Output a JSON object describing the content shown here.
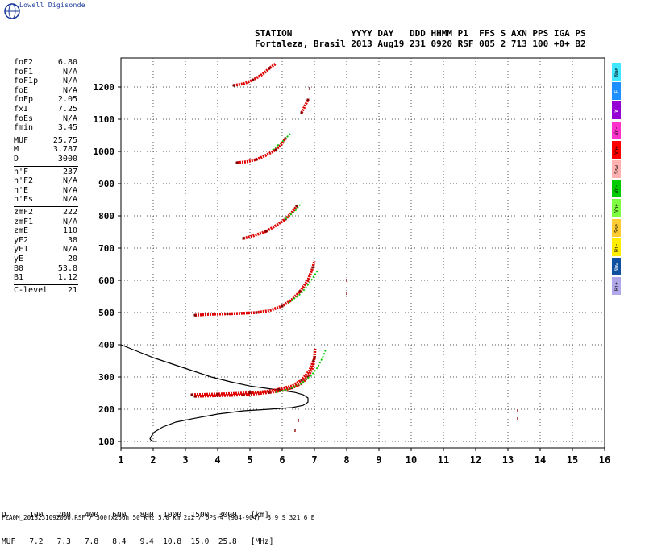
{
  "brand": "Lowell Digisonde",
  "station": {
    "header": "STATION           YYYY DAY   DDD HHMM P1  FFS S AXN PPS IGA PS",
    "values": "Fortaleza, Brasil 2013 Aug19 231 0920 RSF 005 2 713 100 +0+ B2"
  },
  "params": {
    "group1": [
      {
        "label": "foF2",
        "value": "6.80"
      },
      {
        "label": "foF1",
        "value": "N/A"
      },
      {
        "label": "foF1p",
        "value": "N/A"
      },
      {
        "label": "foE",
        "value": "N/A"
      },
      {
        "label": "foEp",
        "value": "2.05"
      },
      {
        "label": "fxI",
        "value": "7.25"
      },
      {
        "label": "foEs",
        "value": "N/A"
      },
      {
        "label": "fmin",
        "value": "3.45"
      }
    ],
    "group2": [
      {
        "label": "MUF",
        "value": "25.75"
      },
      {
        "label": "M",
        "value": "3.787"
      },
      {
        "label": "D",
        "value": "3000"
      }
    ],
    "group3": [
      {
        "label": "h'F",
        "value": "237"
      },
      {
        "label": "h'F2",
        "value": "N/A"
      },
      {
        "label": "h'E",
        "value": "N/A"
      },
      {
        "label": "h'Es",
        "value": "N/A"
      }
    ],
    "group4": [
      {
        "label": "zmF2",
        "value": "222"
      },
      {
        "label": "zmF1",
        "value": "N/A"
      },
      {
        "label": "zmE",
        "value": "110"
      },
      {
        "label": "yF2",
        "value": "38"
      },
      {
        "label": "yF1",
        "value": "N/A"
      },
      {
        "label": "yE",
        "value": "20"
      },
      {
        "label": "B0",
        "value": "53.8"
      },
      {
        "label": "B1",
        "value": "1.12"
      }
    ],
    "group5": [
      {
        "label": "C-level",
        "value": "21"
      }
    ]
  },
  "legend_tags": [
    {
      "label": "Nne",
      "color": "#40e8ff"
    },
    {
      "label": "E",
      "color": "#1e90ff"
    },
    {
      "label": "W",
      "color": "#9400d3"
    },
    {
      "label": "Vo-",
      "color": "#ff33cc"
    },
    {
      "label": "Vo+",
      "color": "#ff0000"
    },
    {
      "label": "Ssw",
      "color": "#ffb0b0"
    },
    {
      "label": "Vo-",
      "color": "#00cc00"
    },
    {
      "label": "Vo+",
      "color": "#80ff40"
    },
    {
      "label": "Sse",
      "color": "#ffcc33"
    },
    {
      "label": "Hi-",
      "color": "#ffee00"
    },
    {
      "label": "Nnw",
      "color": "#1050a0"
    },
    {
      "label": "Hi+",
      "color": "#b0a8e8"
    }
  ],
  "bottom_table": {
    "row1": "D     100   200   400   600   800  1000  1500  3000   [km]",
    "row2": "MUF   7.2   7.3   7.8   8.4   9.4  10.8  15.0  25.8   [MHz]"
  },
  "footer": "FZA0M_2013231092000.RSF / 300fx256h 50 kHz 5.0 km 2x2 / DPS-4 (904-904)  3.9 S 321.6 E",
  "chart_data": {
    "type": "scatter",
    "x_ticks": [
      "1",
      "2",
      "3",
      "4",
      "5",
      "6",
      "7",
      "8",
      "9",
      "10",
      "11",
      "12",
      "13",
      "14",
      "15",
      "16"
    ],
    "y_ticks": [
      "100",
      "200",
      "300",
      "400",
      "500",
      "600",
      "700",
      "800",
      "900",
      "1000",
      "1100",
      "1200"
    ],
    "xlim": [
      1,
      16
    ],
    "ylim": [
      80,
      1290
    ],
    "grid": true,
    "colors": {
      "ordinary": "#e00000",
      "ordinary_dark": "#800000",
      "extraordinary": "#00cc00",
      "extraordinary_light": "#80ff40",
      "profile": "#000000"
    },
    "traces": [
      {
        "name": "",
        "color": "#e00000",
        "points": [
          [
            3.3,
            240
          ],
          [
            3.6,
            241
          ],
          [
            4.0,
            242
          ],
          [
            4.4,
            243
          ],
          [
            4.8,
            245
          ],
          [
            5.2,
            248
          ],
          [
            5.6,
            252
          ],
          [
            6.0,
            258
          ],
          [
            6.3,
            266
          ],
          [
            6.6,
            280
          ],
          [
            6.8,
            300
          ],
          [
            6.95,
            330
          ],
          [
            7.0,
            360
          ],
          [
            7.02,
            390
          ]
        ]
      },
      {
        "name": "",
        "color": "#e00000",
        "points": [
          [
            3.2,
            245
          ],
          [
            3.6,
            246
          ],
          [
            4.0,
            247
          ],
          [
            4.5,
            249
          ],
          [
            5.0,
            251
          ],
          [
            5.5,
            255
          ],
          [
            5.9,
            262
          ],
          [
            6.3,
            272
          ],
          [
            6.6,
            290
          ],
          [
            6.85,
            320
          ],
          [
            6.97,
            350
          ]
        ]
      },
      {
        "name": "",
        "color": "#00cc00",
        "points": [
          [
            5.8,
            252
          ],
          [
            6.2,
            262
          ],
          [
            6.6,
            280
          ],
          [
            6.9,
            305
          ],
          [
            7.1,
            330
          ],
          [
            7.25,
            360
          ],
          [
            7.35,
            385
          ]
        ]
      },
      {
        "name": "",
        "color": "#e00000",
        "points": [
          [
            3.3,
            492
          ],
          [
            3.8,
            495
          ],
          [
            4.3,
            496
          ],
          [
            4.8,
            498
          ],
          [
            5.2,
            500
          ],
          [
            5.6,
            506
          ],
          [
            6.0,
            520
          ],
          [
            6.3,
            540
          ],
          [
            6.55,
            565
          ],
          [
            6.8,
            600
          ],
          [
            6.95,
            640
          ],
          [
            7.0,
            660
          ]
        ]
      },
      {
        "name": "",
        "color": "#00cc00",
        "points": [
          [
            6.2,
            530
          ],
          [
            6.6,
            560
          ],
          [
            6.9,
            600
          ],
          [
            7.1,
            630
          ]
        ]
      },
      {
        "name": "",
        "color": "#e00000",
        "points": [
          [
            4.8,
            730
          ],
          [
            5.1,
            738
          ],
          [
            5.5,
            752
          ],
          [
            5.8,
            770
          ],
          [
            6.1,
            790
          ],
          [
            6.3,
            810
          ],
          [
            6.45,
            830
          ]
        ]
      },
      {
        "name": "",
        "color": "#00cc00",
        "points": [
          [
            6.1,
            790
          ],
          [
            6.4,
            815
          ],
          [
            6.6,
            840
          ]
        ]
      },
      {
        "name": "",
        "color": "#e00000",
        "points": [
          [
            4.6,
            965
          ],
          [
            4.9,
            968
          ],
          [
            5.2,
            975
          ],
          [
            5.5,
            988
          ],
          [
            5.8,
            1005
          ],
          [
            6.0,
            1025
          ],
          [
            6.1,
            1040
          ]
        ]
      },
      {
        "name": "",
        "color": "#00cc00",
        "points": [
          [
            5.7,
            1005
          ],
          [
            6.0,
            1030
          ],
          [
            6.25,
            1055
          ]
        ]
      },
      {
        "name": "",
        "color": "#e00000",
        "points": [
          [
            4.5,
            1205
          ],
          [
            4.8,
            1210
          ],
          [
            5.1,
            1222
          ],
          [
            5.4,
            1240
          ],
          [
            5.6,
            1258
          ],
          [
            5.8,
            1272
          ]
        ]
      },
      {
        "name": "",
        "color": "#e00000",
        "points": [
          [
            6.6,
            1120
          ],
          [
            6.7,
            1140
          ],
          [
            6.8,
            1160
          ]
        ]
      }
    ],
    "scatter_points": [
      [
        8.0,
        600
      ],
      [
        8.0,
        560
      ],
      [
        13.3,
        195
      ],
      [
        13.3,
        170
      ],
      [
        6.5,
        165
      ],
      [
        6.4,
        135
      ],
      [
        6.85,
        1195
      ]
    ],
    "profile": [
      [
        1.0,
        400
      ],
      [
        1.5,
        380
      ],
      [
        2.0,
        360
      ],
      [
        2.6,
        340
      ],
      [
        3.2,
        320
      ],
      [
        3.8,
        300
      ],
      [
        4.4,
        285
      ],
      [
        5.0,
        272
      ],
      [
        5.5,
        265
      ],
      [
        6.0,
        258
      ],
      [
        6.4,
        252
      ],
      [
        6.65,
        245
      ],
      [
        6.8,
        235
      ],
      [
        6.8,
        222
      ],
      [
        6.65,
        212
      ],
      [
        6.3,
        205
      ],
      [
        5.6,
        200
      ],
      [
        4.8,
        195
      ],
      [
        4.0,
        185
      ],
      [
        3.3,
        172
      ],
      [
        2.7,
        160
      ],
      [
        2.3,
        145
      ],
      [
        2.05,
        130
      ],
      [
        1.95,
        118
      ],
      [
        1.9,
        108
      ],
      [
        1.95,
        102
      ],
      [
        2.1,
        100
      ]
    ]
  }
}
